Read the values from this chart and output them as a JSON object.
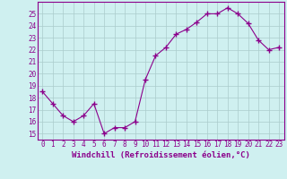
{
  "x": [
    0,
    1,
    2,
    3,
    4,
    5,
    6,
    7,
    8,
    9,
    10,
    11,
    12,
    13,
    14,
    15,
    16,
    17,
    18,
    19,
    20,
    21,
    22,
    23
  ],
  "y": [
    18.5,
    17.5,
    16.5,
    16.0,
    16.5,
    17.5,
    15.0,
    15.5,
    15.5,
    16.0,
    19.5,
    21.5,
    22.2,
    23.3,
    23.7,
    24.3,
    25.0,
    25.0,
    25.5,
    25.0,
    24.2,
    22.8,
    22.0,
    22.2
  ],
  "line_color": "#8B008B",
  "marker": "+",
  "marker_size": 4,
  "bg_color": "#cff0f0",
  "grid_color": "#aacccc",
  "tick_color": "#8B008B",
  "xlabel": "Windchill (Refroidissement éolien,°C)",
  "xlabel_fontsize": 6.5,
  "ylim": [
    14.5,
    26.0
  ],
  "yticks": [
    15,
    16,
    17,
    18,
    19,
    20,
    21,
    22,
    23,
    24,
    25
  ],
  "xticks": [
    0,
    1,
    2,
    3,
    4,
    5,
    6,
    7,
    8,
    9,
    10,
    11,
    12,
    13,
    14,
    15,
    16,
    17,
    18,
    19,
    20,
    21,
    22,
    23
  ],
  "tick_fontsize": 5.5
}
